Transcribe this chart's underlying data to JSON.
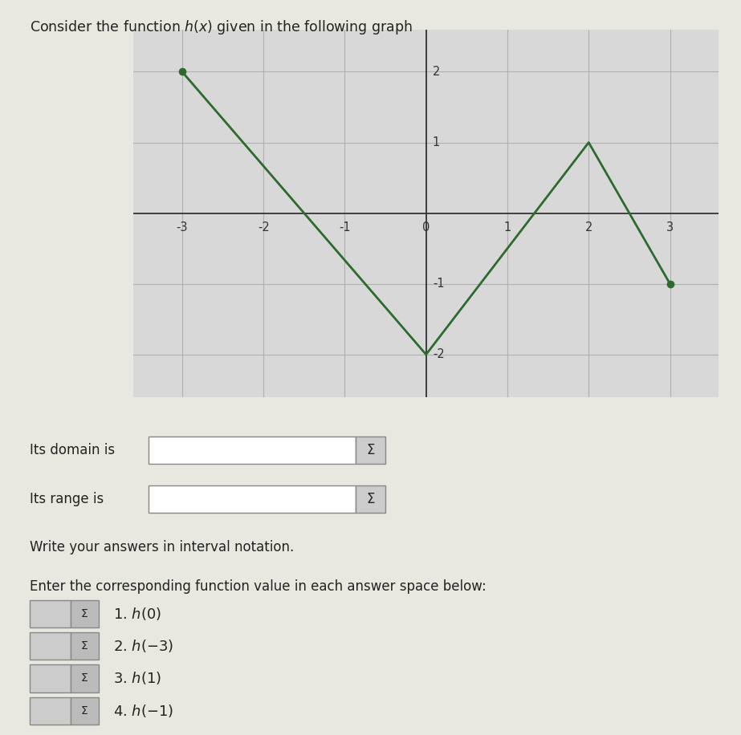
{
  "title": "Consider the function $h(x)$ given in the following graph",
  "graph_points": [
    [
      -3,
      2
    ],
    [
      0,
      -2
    ],
    [
      2,
      1
    ],
    [
      3,
      -1
    ]
  ],
  "line_color": "#2d6a2d",
  "dot_color": "#2d6a2d",
  "dot_points": [
    [
      -3,
      2
    ],
    [
      3,
      -1
    ]
  ],
  "xlim": [
    -3.6,
    3.6
  ],
  "ylim": [
    -2.6,
    2.6
  ],
  "xticks": [
    -3,
    -2,
    -1,
    0,
    1,
    2,
    3
  ],
  "yticks": [
    -2,
    -1,
    1,
    2
  ],
  "grid_color": "#b0b0b0",
  "graph_bg": "#d8d8d8",
  "page_bg": "#e8e8e0",
  "domain_label": "Its domain is",
  "range_label": "Its range is",
  "interval_notation": "Write your answers in interval notation.",
  "enter_label": "Enter the corresponding function value in each answer space below:",
  "questions": [
    "1. $h(0)$",
    "2. $h(-3)$",
    "3. $h(1)$",
    "4. $h(-1)$"
  ],
  "sigma_symbol": "Σ"
}
